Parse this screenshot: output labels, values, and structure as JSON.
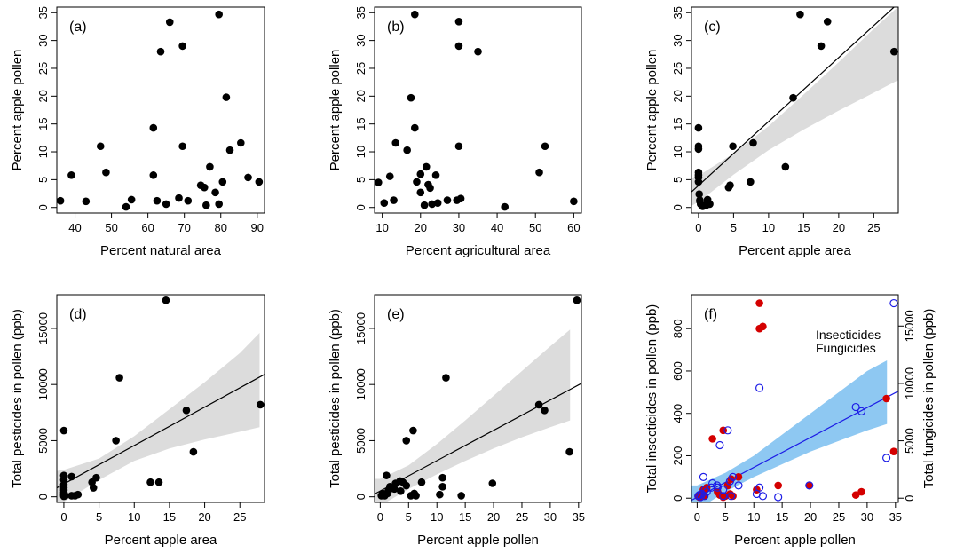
{
  "colors": {
    "point": "#000000",
    "ci_gray": "#dcdcdc",
    "insecticide": "#d40000",
    "fungicide": "#1d1de6",
    "ci_blue": "#8ec8f2"
  },
  "chart_data": [
    {
      "id": "a",
      "type": "scatter",
      "panel_label": "(a)",
      "xlabel": "Percent natural area",
      "ylabel": "Percent apple pollen",
      "xlim": [
        35,
        92
      ],
      "ylim": [
        -1,
        36
      ],
      "xticks": [
        40,
        50,
        60,
        70,
        80,
        90
      ],
      "yticks": [
        0,
        5,
        10,
        15,
        20,
        25,
        30,
        35
      ],
      "points": [
        [
          36,
          1.2
        ],
        [
          39,
          5.8
        ],
        [
          43,
          1.1
        ],
        [
          47,
          11
        ],
        [
          48.5,
          6.3
        ],
        [
          54,
          0.1
        ],
        [
          55.5,
          1.4
        ],
        [
          61.5,
          14.3
        ],
        [
          61.5,
          5.8
        ],
        [
          62.5,
          1.2
        ],
        [
          63.5,
          28
        ],
        [
          65,
          0.6
        ],
        [
          66,
          33.3
        ],
        [
          68.5,
          1.7
        ],
        [
          69.5,
          11
        ],
        [
          69.5,
          29
        ],
        [
          71,
          1.2
        ],
        [
          74.5,
          4
        ],
        [
          75.5,
          3.6
        ],
        [
          76,
          0.4
        ],
        [
          77,
          7.3
        ],
        [
          78.5,
          2.7
        ],
        [
          79.5,
          34.7
        ],
        [
          79.5,
          0.6
        ],
        [
          80.5,
          4.6
        ],
        [
          81.5,
          19.8
        ],
        [
          82.5,
          10.3
        ],
        [
          85.5,
          11.6
        ],
        [
          87.5,
          5.4
        ],
        [
          90.5,
          4.6
        ]
      ]
    },
    {
      "id": "b",
      "type": "scatter",
      "panel_label": "(b)",
      "xlabel": "Percent agricultural area",
      "ylabel": "Percent apple pollen",
      "xlim": [
        8,
        62
      ],
      "ylim": [
        -1,
        36
      ],
      "xticks": [
        10,
        20,
        30,
        40,
        50,
        60
      ],
      "yticks": [
        0,
        5,
        10,
        15,
        20,
        25,
        30,
        35
      ],
      "points": [
        [
          9,
          4.5
        ],
        [
          10.5,
          0.8
        ],
        [
          12,
          5.6
        ],
        [
          13,
          1.3
        ],
        [
          13.5,
          11.6
        ],
        [
          16.5,
          10.3
        ],
        [
          17.5,
          19.7
        ],
        [
          18.5,
          34.7
        ],
        [
          18.5,
          14.3
        ],
        [
          19,
          4.6
        ],
        [
          20,
          6
        ],
        [
          20,
          2.7
        ],
        [
          21,
          0.4
        ],
        [
          21.5,
          7.3
        ],
        [
          22,
          4.1
        ],
        [
          22.5,
          3.5
        ],
        [
          23,
          0.6
        ],
        [
          24,
          5.8
        ],
        [
          24.5,
          0.8
        ],
        [
          27,
          1.3
        ],
        [
          29.5,
          1.3
        ],
        [
          30,
          33.4
        ],
        [
          30,
          29
        ],
        [
          30,
          11
        ],
        [
          30.5,
          1.6
        ],
        [
          35,
          28
        ],
        [
          42,
          0.1
        ],
        [
          51,
          6.3
        ],
        [
          52.5,
          11
        ],
        [
          60,
          1.1
        ]
      ]
    },
    {
      "id": "c",
      "type": "scatter",
      "panel_label": "(c)",
      "xlabel": "Percent apple area",
      "ylabel": "Percent apple pollen",
      "xlim": [
        -1,
        28.5
      ],
      "ylim": [
        -1,
        36
      ],
      "xticks": [
        0,
        5,
        10,
        15,
        20,
        25
      ],
      "yticks": [
        0,
        5,
        10,
        15,
        20,
        25,
        30,
        35
      ],
      "points": [
        [
          0,
          14.3
        ],
        [
          0,
          11
        ],
        [
          0,
          10.5
        ],
        [
          0,
          6.3
        ],
        [
          0,
          5.8
        ],
        [
          0,
          5.4
        ],
        [
          0,
          4.6
        ],
        [
          0.1,
          2.4
        ],
        [
          0.2,
          1.3
        ],
        [
          0.2,
          1.1
        ],
        [
          0.3,
          0.6
        ],
        [
          0.6,
          0.2
        ],
        [
          1.1,
          0.4
        ],
        [
          1.3,
          1.1
        ],
        [
          1.3,
          1.4
        ],
        [
          1.6,
          0.6
        ],
        [
          4.3,
          3.6
        ],
        [
          4.5,
          4
        ],
        [
          4.9,
          11
        ],
        [
          7.4,
          4.6
        ],
        [
          7.8,
          11.6
        ],
        [
          12.4,
          7.3
        ],
        [
          13.5,
          19.7
        ],
        [
          14.5,
          34.7
        ],
        [
          17.5,
          29
        ],
        [
          18.4,
          33.4
        ],
        [
          27.9,
          28
        ]
      ],
      "fit": {
        "x": [
          -1,
          28.5
        ],
        "y": [
          2.8,
          36.7
        ]
      },
      "ci": {
        "x": [
          -1,
          0,
          5,
          10,
          15,
          20,
          25,
          28.5
        ],
        "lo": [
          0.3,
          1.0,
          5.9,
          10.3,
          14.0,
          17.4,
          20.6,
          22.9
        ],
        "hi": [
          5.3,
          5.7,
          9.7,
          14.6,
          20.3,
          26.1,
          32.1,
          36.1
        ]
      }
    },
    {
      "id": "d",
      "type": "scatter",
      "panel_label": "(d)",
      "xlabel": "Percent apple area",
      "ylabel": "Total pesticides in pollen (ppb)",
      "xlim": [
        -1,
        28.5
      ],
      "ylim": [
        -500,
        18000
      ],
      "xticks": [
        0,
        5,
        10,
        15,
        20,
        25
      ],
      "yticks": [
        0,
        5000,
        10000,
        15000
      ],
      "points": [
        [
          0,
          5900
        ],
        [
          0,
          1900
        ],
        [
          0,
          1500
        ],
        [
          0,
          1100
        ],
        [
          0,
          800
        ],
        [
          0,
          600
        ],
        [
          0,
          400
        ],
        [
          0,
          250
        ],
        [
          0,
          150
        ],
        [
          0,
          50
        ],
        [
          0.2,
          100
        ],
        [
          1.1,
          1800
        ],
        [
          1.1,
          100
        ],
        [
          1.6,
          100
        ],
        [
          2,
          200
        ],
        [
          4,
          1300
        ],
        [
          4.2,
          800
        ],
        [
          4.6,
          1700
        ],
        [
          7.4,
          5000
        ],
        [
          7.9,
          10600
        ],
        [
          12.3,
          1300
        ],
        [
          13.5,
          1300
        ],
        [
          14.5,
          17500
        ],
        [
          17.4,
          7700
        ],
        [
          18.4,
          4000
        ],
        [
          27.9,
          8200
        ]
      ],
      "fit": {
        "x": [
          -1,
          28.5
        ],
        "y": [
          800,
          10900
        ]
      },
      "ci": {
        "x": [
          -1,
          0,
          5,
          10,
          15,
          20,
          25,
          27.8
        ],
        "lo": [
          -700,
          -450,
          1500,
          3200,
          4300,
          5100,
          5800,
          6200
        ],
        "hi": [
          2300,
          2400,
          3400,
          5400,
          7800,
          10200,
          12800,
          14600
        ]
      }
    },
    {
      "id": "e",
      "type": "scatter",
      "panel_label": "(e)",
      "xlabel": "Percent apple pollen",
      "ylabel": "Total pesticides in pollen (ppb)",
      "xlim": [
        -1,
        35.5
      ],
      "ylim": [
        -500,
        18000
      ],
      "xticks": [
        0,
        5,
        10,
        15,
        20,
        25,
        30,
        35
      ],
      "yticks": [
        0,
        5000,
        10000,
        15000
      ],
      "points": [
        [
          0.2,
          100
        ],
        [
          0.4,
          300
        ],
        [
          0.6,
          200
        ],
        [
          0.8,
          100
        ],
        [
          1.1,
          1900
        ],
        [
          1.3,
          300
        ],
        [
          1.4,
          500
        ],
        [
          1.7,
          900
        ],
        [
          2.5,
          700
        ],
        [
          2.7,
          1200
        ],
        [
          3.5,
          1400
        ],
        [
          3.6,
          500
        ],
        [
          4,
          1300
        ],
        [
          4.6,
          1000
        ],
        [
          4.6,
          5000
        ],
        [
          5.4,
          100
        ],
        [
          5.8,
          5900
        ],
        [
          6,
          300
        ],
        [
          6.3,
          100
        ],
        [
          7.3,
          1300
        ],
        [
          10.5,
          200
        ],
        [
          11,
          1700
        ],
        [
          11,
          900
        ],
        [
          11.6,
          10600
        ],
        [
          14.3,
          100
        ],
        [
          19.8,
          1200
        ],
        [
          28,
          8200
        ],
        [
          29,
          7700
        ],
        [
          33.4,
          4000
        ],
        [
          34.7,
          17500
        ]
      ],
      "fit": {
        "x": [
          -1,
          35.5
        ],
        "y": [
          250,
          10100
        ]
      },
      "ci": {
        "x": [
          -1,
          0,
          5,
          10,
          15,
          20,
          25,
          30,
          33.5
        ],
        "lo": [
          -1100,
          -800,
          700,
          2000,
          3200,
          4300,
          5300,
          6200,
          6800
        ],
        "hi": [
          1600,
          1600,
          2800,
          4700,
          6800,
          9000,
          11200,
          13400,
          14900
        ]
      }
    },
    {
      "id": "f",
      "type": "scatter",
      "panel_label": "(f)",
      "xlabel": "Percent apple pollen",
      "ylabel": "Total insecticides in pollen (ppb)",
      "ylabel_right": "Total fungicides in pollen (ppb)",
      "xlim": [
        -1,
        35.5
      ],
      "ylim": [
        -20,
        960
      ],
      "ylim_right": [
        -369,
        17729
      ],
      "xticks": [
        0,
        5,
        10,
        15,
        20,
        25,
        30,
        35
      ],
      "yticks": [
        0,
        200,
        400,
        600,
        800
      ],
      "yticks_right": [
        0,
        5000,
        10000,
        15000
      ],
      "legend": [
        "Insecticides",
        "Fungicides"
      ],
      "series": [
        {
          "name": "Insecticides",
          "style": "filled",
          "points": [
            [
              0.2,
              10
            ],
            [
              0.4,
              5
            ],
            [
              0.8,
              20
            ],
            [
              1.1,
              40
            ],
            [
              1.3,
              10
            ],
            [
              1.7,
              50
            ],
            [
              2.7,
              280
            ],
            [
              3.6,
              30
            ],
            [
              4,
              15
            ],
            [
              4.6,
              320
            ],
            [
              4.6,
              5
            ],
            [
              5,
              10
            ],
            [
              5.4,
              60
            ],
            [
              5.8,
              20
            ],
            [
              6,
              90
            ],
            [
              6.3,
              10
            ],
            [
              7.3,
              100
            ],
            [
              10.5,
              40
            ],
            [
              11,
              920
            ],
            [
              11,
              800
            ],
            [
              11.6,
              810
            ],
            [
              14.3,
              60
            ],
            [
              19.8,
              60
            ],
            [
              28,
              15
            ],
            [
              29,
              30
            ],
            [
              33.4,
              470
            ],
            [
              34.7,
              220
            ]
          ]
        },
        {
          "name": "Fungicides",
          "style": "open",
          "points": [
            [
              0.2,
              10
            ],
            [
              0.4,
              15
            ],
            [
              0.6,
              5
            ],
            [
              0.8,
              20
            ],
            [
              1.1,
              100
            ],
            [
              1.3,
              10
            ],
            [
              1.4,
              40
            ],
            [
              1.7,
              30
            ],
            [
              2.5,
              50
            ],
            [
              2.7,
              70
            ],
            [
              3.5,
              60
            ],
            [
              3.6,
              50
            ],
            [
              4,
              250
            ],
            [
              4.6,
              40
            ],
            [
              4.6,
              10
            ],
            [
              5.4,
              320
            ],
            [
              5.8,
              80
            ],
            [
              6,
              10
            ],
            [
              6.3,
              100
            ],
            [
              7.3,
              60
            ],
            [
              10.5,
              20
            ],
            [
              11,
              50
            ],
            [
              11,
              520
            ],
            [
              11.6,
              10
            ],
            [
              14.3,
              5
            ],
            [
              19.8,
              60
            ],
            [
              28,
              430
            ],
            [
              29,
              410
            ],
            [
              33.4,
              190
            ],
            [
              34.7,
              920
            ]
          ]
        }
      ],
      "fit": {
        "x": [
          -1,
          35.5
        ],
        "y": [
          -10,
          505
        ]
      },
      "ci": {
        "x": [
          -1,
          0,
          5,
          10,
          15,
          20,
          25,
          30,
          33.5
        ],
        "lo": [
          -60,
          -55,
          30,
          100,
          160,
          220,
          270,
          320,
          350
        ],
        "hi": [
          60,
          60,
          120,
          200,
          300,
          400,
          500,
          600,
          650
        ]
      }
    }
  ]
}
